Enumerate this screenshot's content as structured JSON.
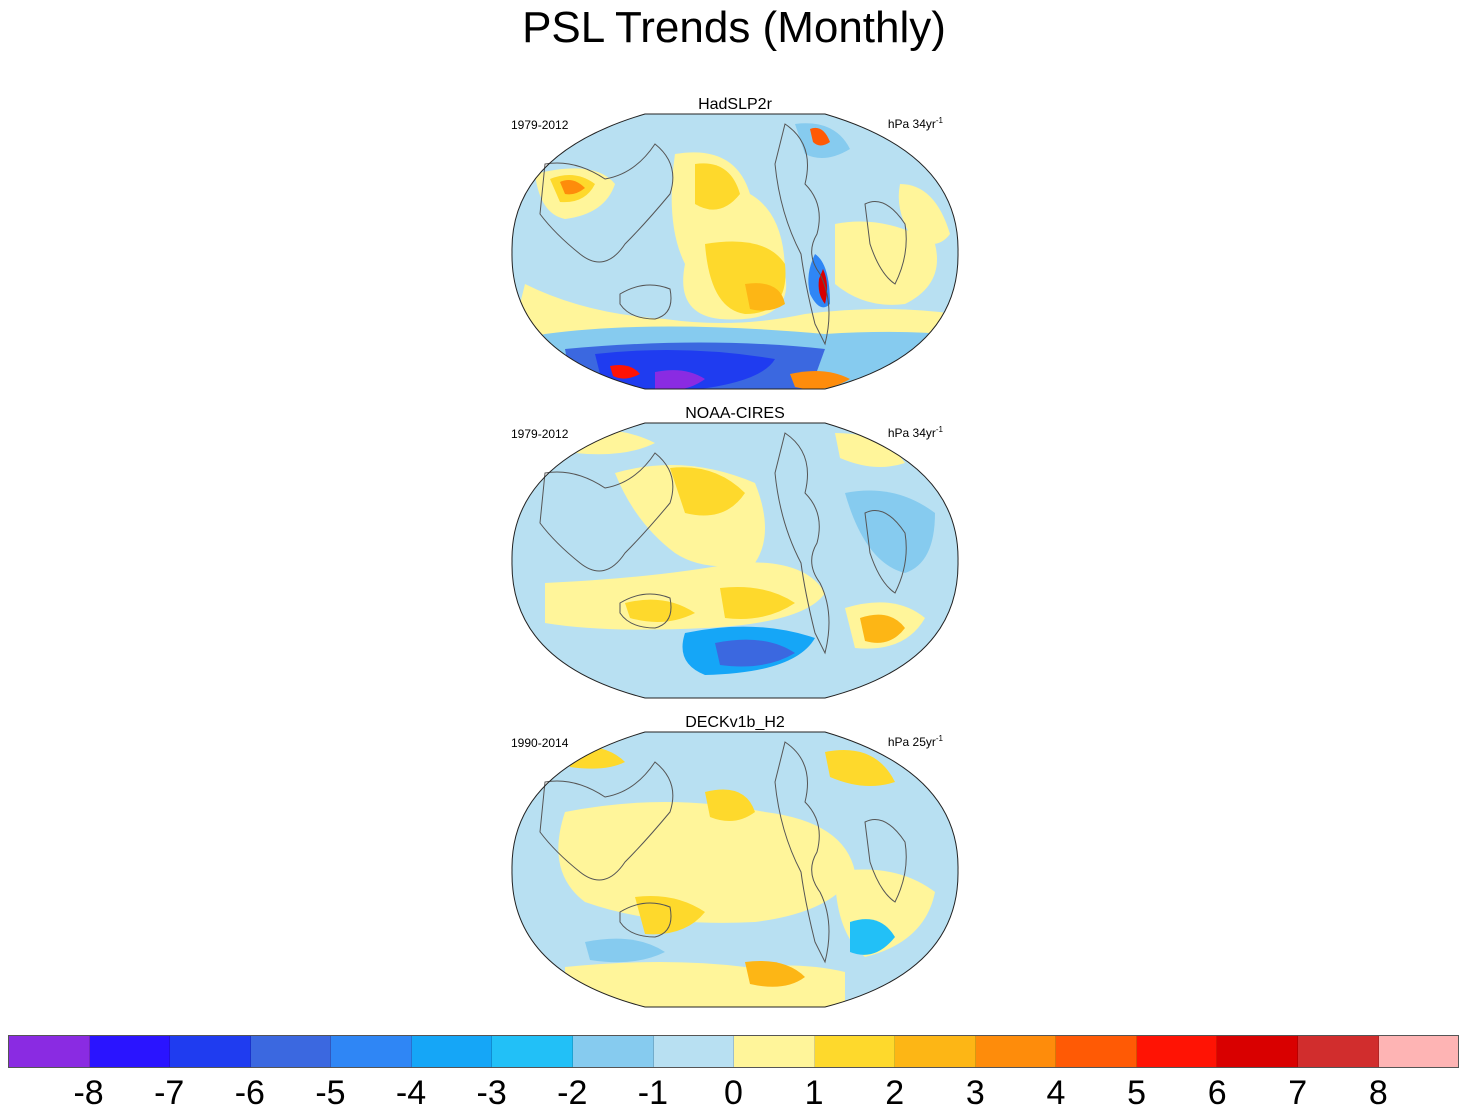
{
  "title": "PSL Trends (Monthly)",
  "panels": [
    {
      "name": "HadSLP2r",
      "period": "1979-2012",
      "units_base": "hPa 34yr",
      "units_exp": "-1"
    },
    {
      "name": "NOAA-CIRES",
      "period": "1979-2012",
      "units_base": "hPa 34yr",
      "units_exp": "-1"
    },
    {
      "name": "DECKv1b_H2",
      "period": "1990-2014",
      "units_base": "hPa 25yr",
      "units_exp": "-1"
    }
  ],
  "colorbar": {
    "colors": [
      "#8a2be2",
      "#2a14ff",
      "#1f3cf0",
      "#3b68e0",
      "#2f86f5",
      "#15a6f7",
      "#22c0f7",
      "#86cbef",
      "#b8e0f2",
      "#fff59a",
      "#fed92c",
      "#fdb615",
      "#fe8c0b",
      "#ff5a05",
      "#ff1304",
      "#d90000",
      "#d12d2d",
      "#feb4b4"
    ],
    "labels": [
      "-8",
      "-7",
      "-6",
      "-5",
      "-4",
      "-3",
      "-2",
      "-1",
      "0",
      "1",
      "2",
      "3",
      "4",
      "5",
      "6",
      "7",
      "8"
    ]
  }
}
